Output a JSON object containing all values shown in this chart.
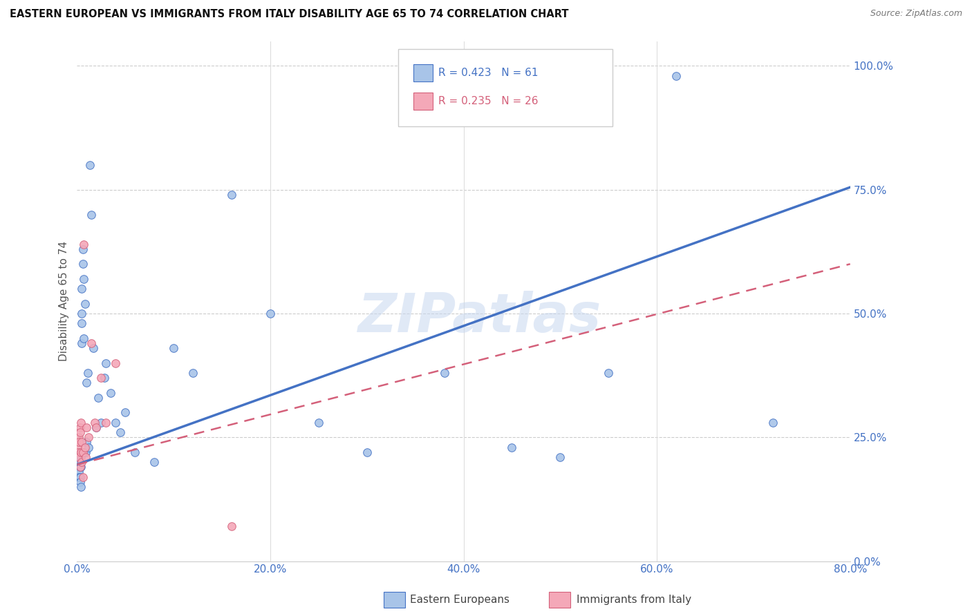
{
  "title": "EASTERN EUROPEAN VS IMMIGRANTS FROM ITALY DISABILITY AGE 65 TO 74 CORRELATION CHART",
  "source": "Source: ZipAtlas.com",
  "ylabel": "Disability Age 65 to 74",
  "watermark": "ZIPatlas",
  "xlim": [
    0.0,
    0.8
  ],
  "ylim": [
    0.0,
    1.05
  ],
  "xtick_vals": [
    0.0,
    0.2,
    0.4,
    0.6,
    0.8
  ],
  "xtick_labels": [
    "0.0%",
    "20.0%",
    "40.0%",
    "60.0%",
    "80.0%"
  ],
  "ytick_vals": [
    0.0,
    0.25,
    0.5,
    0.75,
    1.0
  ],
  "ytick_labels": [
    "0.0%",
    "25.0%",
    "50.0%",
    "75.0%",
    "100.0%"
  ],
  "blue_R": 0.423,
  "blue_N": 61,
  "pink_R": 0.235,
  "pink_N": 26,
  "blue_color": "#a8c4e8",
  "pink_color": "#f4a8b8",
  "blue_edge_color": "#4472c4",
  "pink_edge_color": "#d4607a",
  "blue_line_color": "#4472c4",
  "pink_line_color": "#d4607a",
  "bottom_legend_blue": "Eastern Europeans",
  "bottom_legend_pink": "Immigrants from Italy",
  "blue_line_start_y": 0.195,
  "blue_line_end_y": 0.755,
  "pink_line_start_y": 0.195,
  "pink_line_end_y": 0.6,
  "blue_x": [
    0.001,
    0.001,
    0.001,
    0.001,
    0.002,
    0.002,
    0.002,
    0.002,
    0.002,
    0.003,
    0.003,
    0.003,
    0.003,
    0.003,
    0.004,
    0.004,
    0.004,
    0.004,
    0.005,
    0.005,
    0.005,
    0.005,
    0.006,
    0.006,
    0.006,
    0.007,
    0.007,
    0.008,
    0.008,
    0.009,
    0.01,
    0.01,
    0.011,
    0.012,
    0.013,
    0.015,
    0.017,
    0.02,
    0.022,
    0.025,
    0.028,
    0.03,
    0.035,
    0.04,
    0.045,
    0.05,
    0.06,
    0.08,
    0.1,
    0.12,
    0.16,
    0.2,
    0.25,
    0.3,
    0.38,
    0.45,
    0.5,
    0.55,
    0.62,
    0.72,
    0.5
  ],
  "blue_y": [
    0.2,
    0.21,
    0.19,
    0.18,
    0.22,
    0.2,
    0.19,
    0.18,
    0.17,
    0.21,
    0.2,
    0.19,
    0.17,
    0.16,
    0.22,
    0.21,
    0.19,
    0.15,
    0.44,
    0.48,
    0.5,
    0.55,
    0.6,
    0.63,
    0.22,
    0.45,
    0.57,
    0.52,
    0.22,
    0.22,
    0.36,
    0.24,
    0.38,
    0.23,
    0.8,
    0.7,
    0.43,
    0.27,
    0.33,
    0.28,
    0.37,
    0.4,
    0.34,
    0.28,
    0.26,
    0.3,
    0.22,
    0.2,
    0.43,
    0.38,
    0.74,
    0.5,
    0.28,
    0.22,
    0.38,
    0.23,
    0.21,
    0.38,
    0.98,
    0.28,
    0.98
  ],
  "pink_x": [
    0.001,
    0.001,
    0.002,
    0.002,
    0.002,
    0.003,
    0.003,
    0.003,
    0.004,
    0.004,
    0.005,
    0.005,
    0.006,
    0.006,
    0.007,
    0.008,
    0.009,
    0.01,
    0.012,
    0.015,
    0.018,
    0.02,
    0.025,
    0.03,
    0.04,
    0.16
  ],
  "pink_y": [
    0.23,
    0.22,
    0.25,
    0.24,
    0.21,
    0.27,
    0.26,
    0.19,
    0.28,
    0.22,
    0.24,
    0.2,
    0.22,
    0.17,
    0.64,
    0.23,
    0.21,
    0.27,
    0.25,
    0.44,
    0.28,
    0.27,
    0.37,
    0.28,
    0.4,
    0.07
  ],
  "marker_size": 70
}
